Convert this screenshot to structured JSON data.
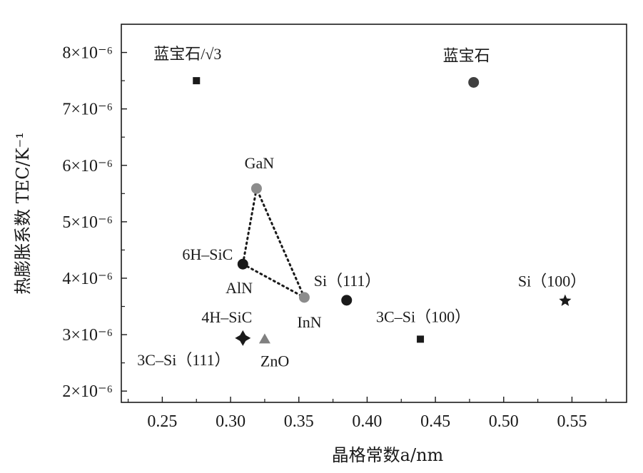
{
  "chart_data": {
    "type": "scatter",
    "xlabel": "晶格常数a/nm",
    "ylabel": "热膨胀系数 TEC/K⁻¹",
    "xlim": [
      0.22,
      0.59
    ],
    "ylim": [
      1.8e-06,
      8.5e-06
    ],
    "grid": false,
    "x_ticks": [
      0.25,
      0.3,
      0.35,
      0.4,
      0.45,
      0.5,
      0.55
    ],
    "x_tick_labels": [
      "0.25",
      "0.30",
      "0.35",
      "0.40",
      "0.45",
      "0.50",
      "0.55"
    ],
    "y_ticks": [
      2e-06,
      3e-06,
      4e-06,
      5e-06,
      6e-06,
      7e-06,
      8e-06
    ],
    "y_tick_labels": [
      "2×10⁻⁶",
      "3×10⁻⁶",
      "4×10⁻⁶",
      "5×10⁻⁶",
      "6×10⁻⁶",
      "7×10⁻⁶",
      "8×10⁻⁶"
    ],
    "points": [
      {
        "label": "蓝宝石/√3",
        "x": 0.275,
        "y": 7.5e-06,
        "marker": "square",
        "color": "#1a1a1a"
      },
      {
        "label": "蓝宝石",
        "x": 0.478,
        "y": 7.47e-06,
        "marker": "circle",
        "color": "#404040"
      },
      {
        "label": "GaN",
        "x": 0.319,
        "y": 5.59e-06,
        "marker": "circle",
        "color": "#8c8c8c"
      },
      {
        "label": "6H–SiC",
        "x": 0.309,
        "y": 4.25e-06,
        "marker": "circle",
        "color": "#1a1a1a"
      },
      {
        "label": "AlN",
        "x": 0.311,
        "y": 4.2e-06,
        "marker": "none",
        "color": "#1a1a1a"
      },
      {
        "label": "InN",
        "x": 0.354,
        "y": 3.66e-06,
        "marker": "circle",
        "color": "#8c8c8c"
      },
      {
        "label": "Si（111）",
        "x": 0.385,
        "y": 3.61e-06,
        "marker": "circle",
        "color": "#1a1a1a"
      },
      {
        "label": "Si（100）",
        "x": 0.545,
        "y": 3.6e-06,
        "marker": "star",
        "color": "#1a1a1a"
      },
      {
        "label": "3C–Si（100）",
        "x": 0.439,
        "y": 2.92e-06,
        "marker": "square",
        "color": "#1a1a1a"
      },
      {
        "label": "4H–SiC",
        "x": 0.308,
        "y": 2.95e-06,
        "marker": "none",
        "color": "#1a1a1a"
      },
      {
        "label": "3C–Si（111）",
        "x": 0.309,
        "y": 2.94e-06,
        "marker": "diamond",
        "color": "#1a1a1a"
      },
      {
        "label": "ZnO",
        "x": 0.325,
        "y": 2.92e-06,
        "marker": "triangle",
        "color": "#808080"
      }
    ],
    "connections": [
      {
        "from": "GaN",
        "to": "6H–SiC"
      },
      {
        "from": "6H–SiC",
        "to": "InN"
      },
      {
        "from": "InN",
        "to": "GaN"
      }
    ]
  }
}
